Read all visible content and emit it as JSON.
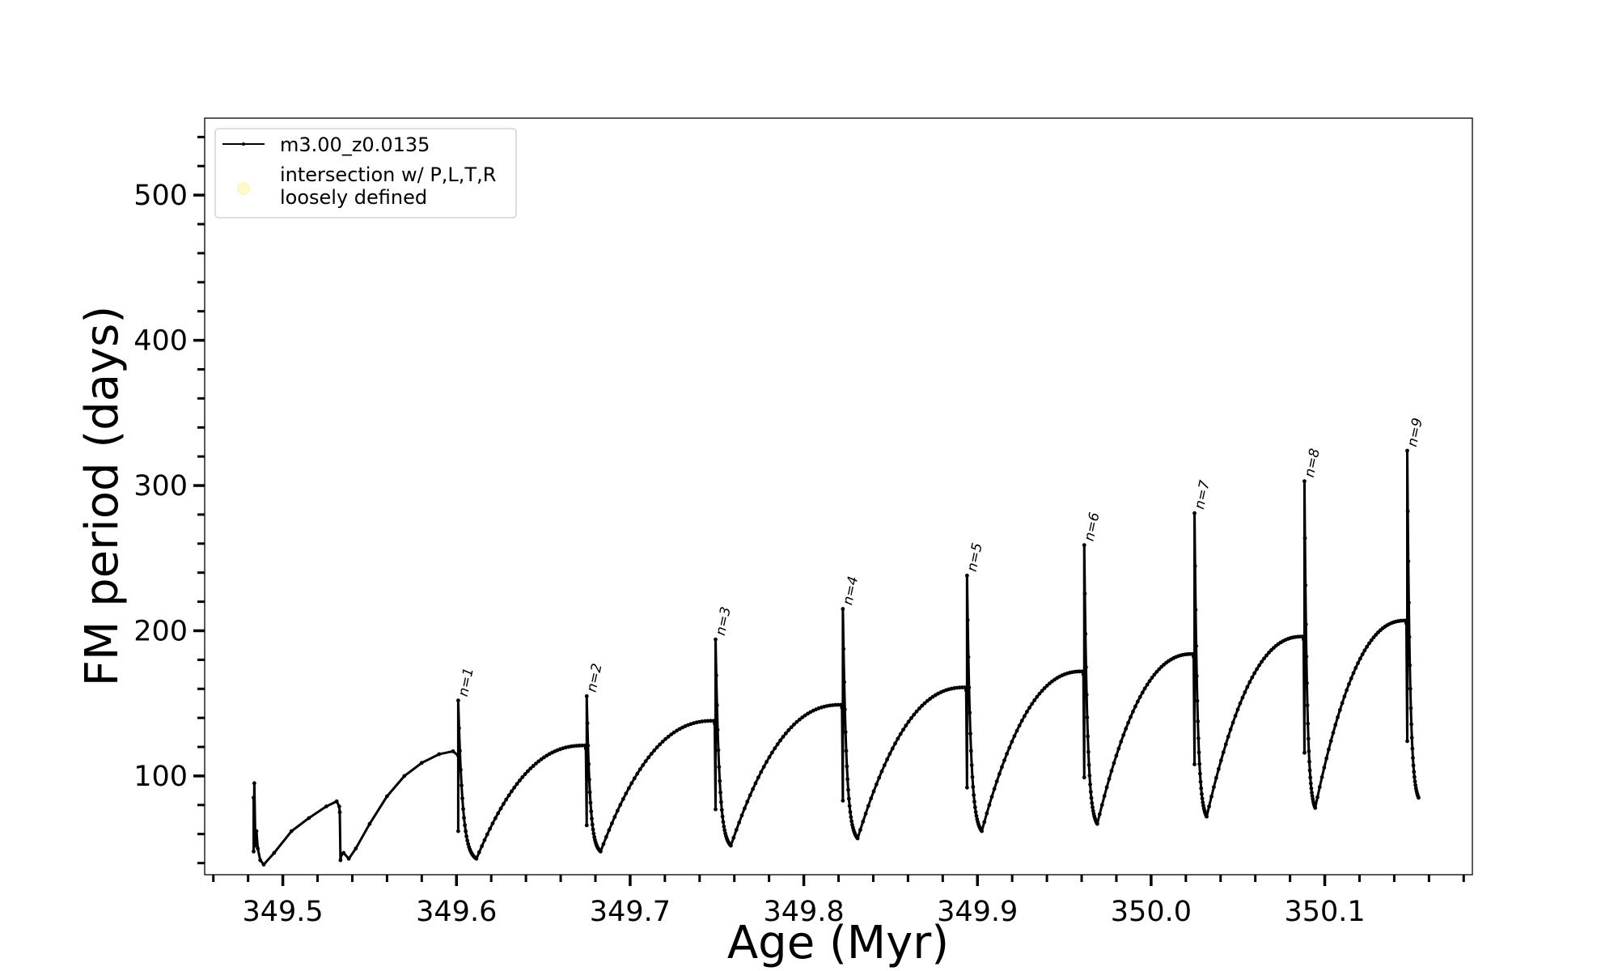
{
  "chart_data": {
    "type": "line",
    "xlabel": "Age (Myr)",
    "ylabel": "FM period (days)",
    "xlim": [
      349.455,
      350.185
    ],
    "ylim": [
      32,
      553
    ],
    "x_ticks": [
      349.5,
      349.6,
      349.7,
      349.8,
      349.9,
      350.0,
      350.1
    ],
    "x_tick_labels": [
      "349.5",
      "349.6",
      "349.7",
      "349.8",
      "349.9",
      "350.0",
      "350.1"
    ],
    "y_ticks": [
      100,
      200,
      300,
      400,
      500
    ],
    "y_tick_labels": [
      "100",
      "200",
      "300",
      "400",
      "500"
    ],
    "grid": false,
    "legend": {
      "placement": "top-left",
      "entries": [
        {
          "label": "m3.00_z0.0135",
          "marker": "line-dot",
          "color": "#000000"
        },
        {
          "label_lines": [
            "intersection w/ P,L,T,R",
            "loosely defined"
          ],
          "marker": "circle",
          "color": "#fffacd"
        }
      ]
    },
    "series": [
      {
        "name": "m3.00_z0.0135",
        "color": "#000000",
        "initial_segment": [
          [
            349.4832,
            85
          ],
          [
            349.4832,
            48
          ],
          [
            349.4836,
            95
          ],
          [
            349.4842,
            52
          ],
          [
            349.4848,
            62
          ],
          [
            349.4856,
            50
          ],
          [
            349.487,
            42
          ],
          [
            349.489,
            39
          ],
          [
            349.495,
            47
          ],
          [
            349.505,
            62
          ],
          [
            349.515,
            71
          ],
          [
            349.525,
            79
          ],
          [
            349.531,
            82.5
          ],
          [
            349.5325,
            79
          ],
          [
            349.5328,
            75
          ],
          [
            349.5332,
            42
          ],
          [
            349.5338,
            46
          ],
          [
            349.535,
            47
          ],
          [
            349.538,
            43
          ],
          [
            349.542,
            50
          ],
          [
            349.55,
            67
          ],
          [
            349.56,
            86
          ],
          [
            349.57,
            100
          ],
          [
            349.58,
            109
          ],
          [
            349.59,
            115
          ],
          [
            349.598,
            117
          ],
          [
            349.601,
            114
          ]
        ],
        "cycles": [
          {
            "start": 349.601,
            "low": 62,
            "peak": 152,
            "minimum": 43,
            "t_min": 349.6115,
            "plateau": 121,
            "end": 349.675
          },
          {
            "start": 349.675,
            "low": 66,
            "peak": 155,
            "minimum": 48,
            "t_min": 349.683,
            "plateau": 138,
            "end": 349.7492
          },
          {
            "start": 349.7492,
            "low": 77,
            "peak": 194,
            "minimum": 52,
            "t_min": 349.758,
            "plateau": 149,
            "end": 349.8225
          },
          {
            "start": 349.8225,
            "low": 83,
            "peak": 215,
            "minimum": 57,
            "t_min": 349.831,
            "plateau": 161,
            "end": 349.894
          },
          {
            "start": 349.894,
            "low": 92,
            "peak": 238,
            "minimum": 62,
            "t_min": 349.9025,
            "plateau": 172,
            "end": 349.9615
          },
          {
            "start": 349.9615,
            "low": 99,
            "peak": 259,
            "minimum": 67,
            "t_min": 349.969,
            "plateau": 184,
            "end": 350.025
          },
          {
            "start": 350.025,
            "low": 108,
            "peak": 281,
            "minimum": 72,
            "t_min": 350.032,
            "plateau": 196,
            "end": 350.0883
          },
          {
            "start": 350.0883,
            "low": 116,
            "peak": 303,
            "minimum": 78,
            "t_min": 350.0945,
            "plateau": 207,
            "end": 350.1475
          },
          {
            "start": 350.1475,
            "low": 124,
            "peak": 324,
            "minimum": 85,
            "t_min": 350.154,
            "plateau": null,
            "end": 350.154
          }
        ]
      }
    ],
    "annotations": [
      {
        "text": "n=1",
        "x": 349.6015,
        "y": 152
      },
      {
        "text": "n=2",
        "x": 349.6755,
        "y": 155
      },
      {
        "text": "n=3",
        "x": 349.7497,
        "y": 194
      },
      {
        "text": "n=4",
        "x": 349.823,
        "y": 215
      },
      {
        "text": "n=5",
        "x": 349.8945,
        "y": 238
      },
      {
        "text": "n=6",
        "x": 349.962,
        "y": 259
      },
      {
        "text": "n=7",
        "x": 350.0255,
        "y": 281
      },
      {
        "text": "n=8",
        "x": 350.0888,
        "y": 303
      },
      {
        "text": "n=9",
        "x": 350.148,
        "y": 324
      }
    ]
  }
}
